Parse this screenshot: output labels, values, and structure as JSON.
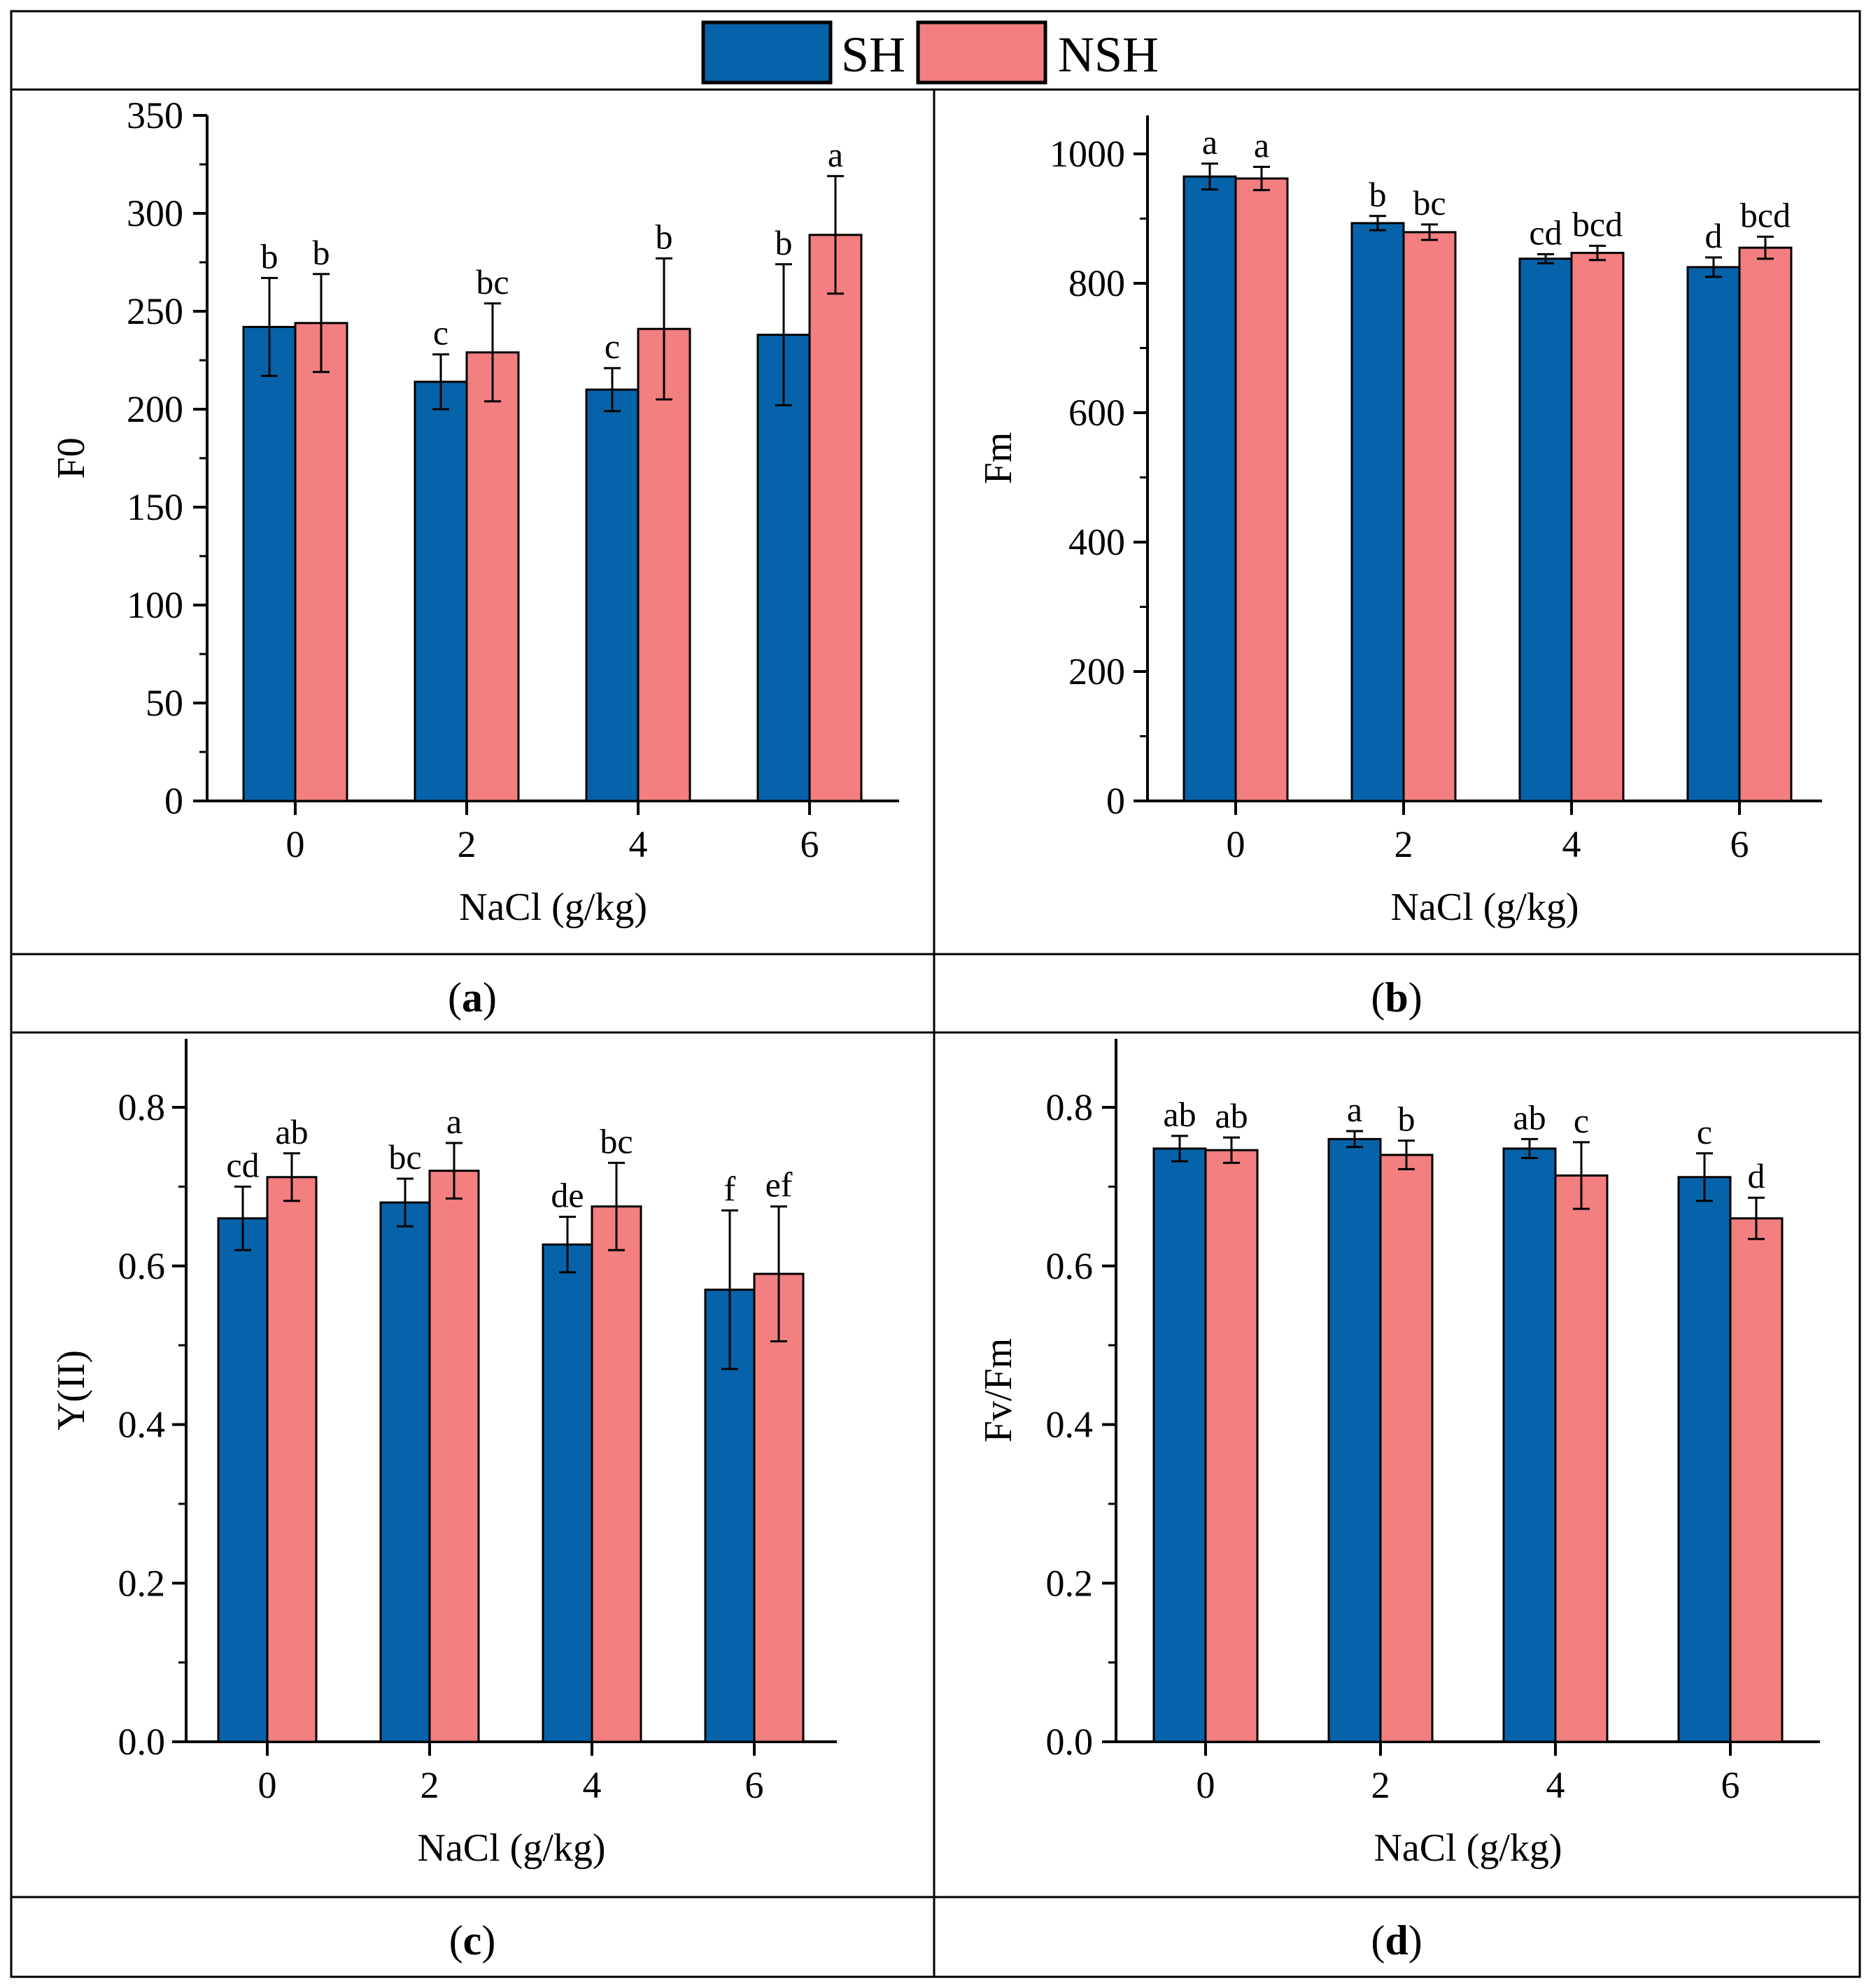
{
  "legend": {
    "items": [
      {
        "label": "SH",
        "color": "#0663a9"
      },
      {
        "label": "NSH",
        "color": "#f37f80"
      }
    ]
  },
  "colors": {
    "SH": "#0663a9",
    "NSH": "#f37f80"
  },
  "chart_data": [
    {
      "id": "a",
      "type": "bar",
      "caption_letter": "a",
      "ylabel": "F0",
      "xlabel": "NaCl (g/kg)",
      "categories": [
        "0",
        "2",
        "4",
        "6"
      ],
      "ylim": [
        0,
        350
      ],
      "yticks": [
        0,
        50,
        100,
        150,
        200,
        250,
        300,
        350
      ],
      "ytick_labels": [
        "0",
        "50",
        "100",
        "150",
        "200",
        "250",
        "300",
        "350"
      ],
      "series": [
        {
          "name": "SH",
          "values": [
            242,
            214,
            210,
            238
          ],
          "errors": [
            25,
            14,
            11,
            36
          ],
          "labels": [
            "b",
            "c",
            "c",
            "b"
          ]
        },
        {
          "name": "NSH",
          "values": [
            244,
            229,
            241,
            289
          ],
          "errors": [
            25,
            25,
            36,
            30
          ],
          "labels": [
            "b",
            "bc",
            "b",
            "a"
          ]
        }
      ]
    },
    {
      "id": "b",
      "type": "bar",
      "caption_letter": "b",
      "ylabel": "Fm",
      "xlabel": "NaCl (g/kg)",
      "categories": [
        "0",
        "2",
        "4",
        "6"
      ],
      "ylim": [
        0,
        1000
      ],
      "yticks": [
        0,
        200,
        400,
        600,
        800,
        1000
      ],
      "ytick_labels": [
        "0",
        "200",
        "400",
        "600",
        "800",
        "1000"
      ],
      "series": [
        {
          "name": "SH",
          "values": [
            965,
            893,
            838,
            825
          ],
          "errors": [
            20,
            11,
            7,
            15
          ],
          "labels": [
            "a",
            "b",
            "cd",
            "d"
          ]
        },
        {
          "name": "NSH",
          "values": [
            962,
            879,
            847,
            855
          ],
          "errors": [
            18,
            12,
            11,
            17
          ],
          "labels": [
            "a",
            "bc",
            "bcd",
            "bcd"
          ]
        }
      ]
    },
    {
      "id": "c",
      "type": "bar",
      "caption_letter": "c",
      "ylabel": "Y(II)",
      "xlabel": "NaCl (g/kg)",
      "categories": [
        "0",
        "2",
        "4",
        "6"
      ],
      "ylim": [
        0,
        0.8
      ],
      "yticks": [
        0,
        0.2,
        0.4,
        0.6,
        0.8
      ],
      "ytick_labels": [
        "0.0",
        "0.2",
        "0.4",
        "0.6",
        "0.8"
      ],
      "series": [
        {
          "name": "SH",
          "values": [
            0.66,
            0.68,
            0.627,
            0.57
          ],
          "errors": [
            0.04,
            0.03,
            0.035,
            0.1
          ],
          "labels": [
            "cd",
            "bc",
            "de",
            "f"
          ]
        },
        {
          "name": "NSH",
          "values": [
            0.712,
            0.72,
            0.675,
            0.59
          ],
          "errors": [
            0.03,
            0.035,
            0.055,
            0.085
          ],
          "labels": [
            "ab",
            "a",
            "bc",
            "ef"
          ]
        }
      ]
    },
    {
      "id": "d",
      "type": "bar",
      "caption_letter": "d",
      "ylabel": "Fv/Fm",
      "xlabel": "NaCl (g/kg)",
      "categories": [
        "0",
        "2",
        "4",
        "6"
      ],
      "ylim": [
        0,
        0.8
      ],
      "yticks": [
        0,
        0.2,
        0.4,
        0.6,
        0.8
      ],
      "ytick_labels": [
        "0.0",
        "0.2",
        "0.4",
        "0.6",
        "0.8"
      ],
      "series": [
        {
          "name": "SH",
          "values": [
            0.748,
            0.76,
            0.748,
            0.712
          ],
          "errors": [
            0.016,
            0.01,
            0.012,
            0.03
          ],
          "labels": [
            "ab",
            "a",
            "ab",
            "c"
          ]
        },
        {
          "name": "NSH",
          "values": [
            0.746,
            0.74,
            0.714,
            0.66
          ],
          "errors": [
            0.016,
            0.018,
            0.042,
            0.026
          ],
          "labels": [
            "ab",
            "b",
            "c",
            "d"
          ]
        }
      ]
    }
  ]
}
